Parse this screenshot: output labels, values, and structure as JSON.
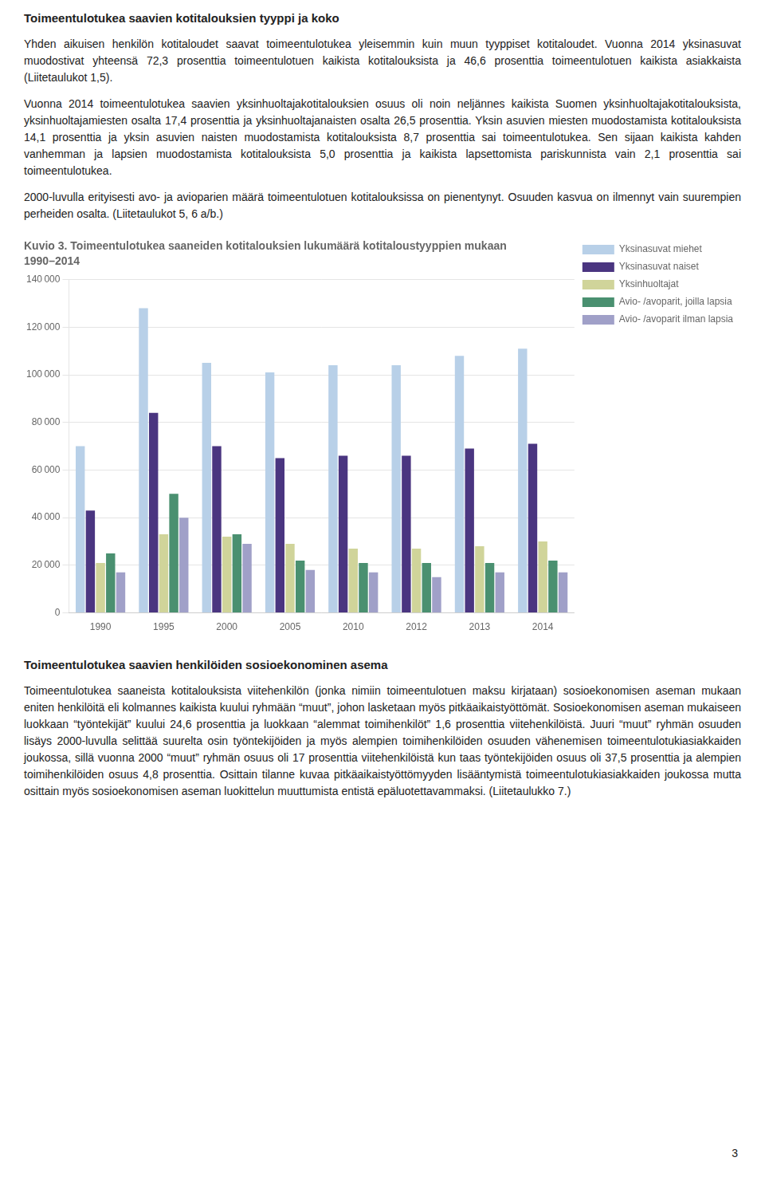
{
  "sections": [
    {
      "title": "Toimeentulotukea saavien kotitalouksien tyyppi ja koko",
      "body": "Yhden aikuisen henkilön kotitaloudet saavat toimeentulotukea yleisemmin kuin muun tyyppiset kotitaloudet. Vuonna 2014 yksinasuvat muodostivat yhteensä 72,3 prosenttia toimeentulotuen kaikista kotitalouksista ja 46,6 prosenttia toimeentulotuen kaikista asiakkaista (Liitetaulukot 1,5).\n\nVuonna 2014 toimeentulotukea saavien yksinhuoltajakotitalouksien osuus oli noin neljännes kaikista Suomen yksinhuoltajakotitalouksista, yksinhuoltajamiesten osalta 17,4 prosenttia ja yksinhuoltajanaisten osalta 26,5 prosenttia. Yksin asuvien miesten muodostamista kotitalouksista 14,1 prosenttia ja yksin asuvien naisten muodostamista kotitalouksista 8,7 prosenttia sai toimeentulotukea. Sen sijaan kaikista kahden vanhemman ja lapsien muodostamista kotitalouksista 5,0 prosenttia ja kaikista lapsettomista pariskunnista vain 2,1 prosenttia sai toimeentulotukea.\n\n2000-luvulla erityisesti avo- ja avioparien määrä toimeentulotuen kotitalouksissa on pienentynyt. Osuuden kasvua on ilmennyt vain suurempien perheiden osalta. (Liitetaulukot 5, 6 a/b.)"
    },
    {
      "title": "Toimeentulotukea saavien henkilöiden sosioekonominen asema",
      "body": "Toimeentulotukea saaneista kotitalouksista viitehenkilön (jonka nimiin toimeentulotuen maksu kirjataan) sosioekonomisen aseman mukaan eniten henkilöitä eli kolmannes kaikista kuului ryhmään “muut”, johon lasketaan myös pitkäaikaistyöttömät. Sosioekonomisen aseman mukaiseen luokkaan “työntekijät” kuului 24,6 prosenttia ja luokkaan “alemmat toimihenkilöt” 1,6 prosenttia viitehenkilöistä. Juuri “muut” ryhmän osuuden lisäys 2000-luvulla selittää suurelta osin työntekijöiden ja myös alempien toimihenkilöiden osuuden vähenemisen toimeentulotukiasiakkaiden joukossa, sillä vuonna 2000 “muut” ryhmän osuus oli 17 prosenttia viitehenkilöistä kun taas työntekijöiden osuus oli 37,5 prosenttia ja alempien toimihenkilöiden osuus 4,8 prosenttia. Osittain tilanne kuvaa pitkäaikaistyöttömyyden lisääntymistä toimeentulotukiasiakkaiden joukossa mutta osittain myös sosioekonomisen aseman luokittelun muuttumista entistä epäluotettavammaksi. (Liitetaulukko 7.)"
    }
  ],
  "page_number": "3",
  "chart_data": {
    "type": "bar",
    "title": "Kuvio 3. Toimeentulotukea saaneiden kotitalouksien lukumäärä kotitaloustyyppien mukaan",
    "subtitle": "1990–2014",
    "categories": [
      "1990",
      "1995",
      "2000",
      "2005",
      "2010",
      "2012",
      "2013",
      "2014"
    ],
    "series": [
      {
        "name": "Yksinasuvat miehet",
        "color": "#b8d0e8",
        "values": [
          70000,
          128000,
          105000,
          101000,
          104000,
          104000,
          108000,
          111000
        ]
      },
      {
        "name": "Yksinasuvat naiset",
        "color": "#4a3580",
        "values": [
          43000,
          84000,
          70000,
          65000,
          66000,
          66000,
          69000,
          71000
        ]
      },
      {
        "name": "Yksinhuoltajat",
        "color": "#d0d49a",
        "values": [
          21000,
          33000,
          32000,
          29000,
          27000,
          27000,
          28000,
          30000
        ]
      },
      {
        "name": "Avio- /avoparit, joilla lapsia",
        "color": "#4a9070",
        "values": [
          25000,
          50000,
          33000,
          22000,
          21000,
          21000,
          21000,
          22000
        ]
      },
      {
        "name": "Avio- /avoparit ilman lapsia",
        "color": "#a0a0c8",
        "values": [
          17000,
          40000,
          29000,
          18000,
          17000,
          15000,
          17000,
          17000
        ]
      }
    ],
    "ylim": [
      0,
      140000
    ],
    "yticks": [
      0,
      {
        "value": 20000,
        "label": "20 000"
      },
      {
        "value": 40000,
        "label": "40 000"
      },
      {
        "value": 60000,
        "label": "60 000"
      },
      {
        "value": 80000,
        "label": "80 000"
      },
      {
        "value": 100000,
        "label": "100 000"
      },
      {
        "value": 120000,
        "label": "120 000"
      },
      {
        "value": 140000,
        "label": "140 000"
      }
    ],
    "grid": true,
    "legend": "right"
  }
}
